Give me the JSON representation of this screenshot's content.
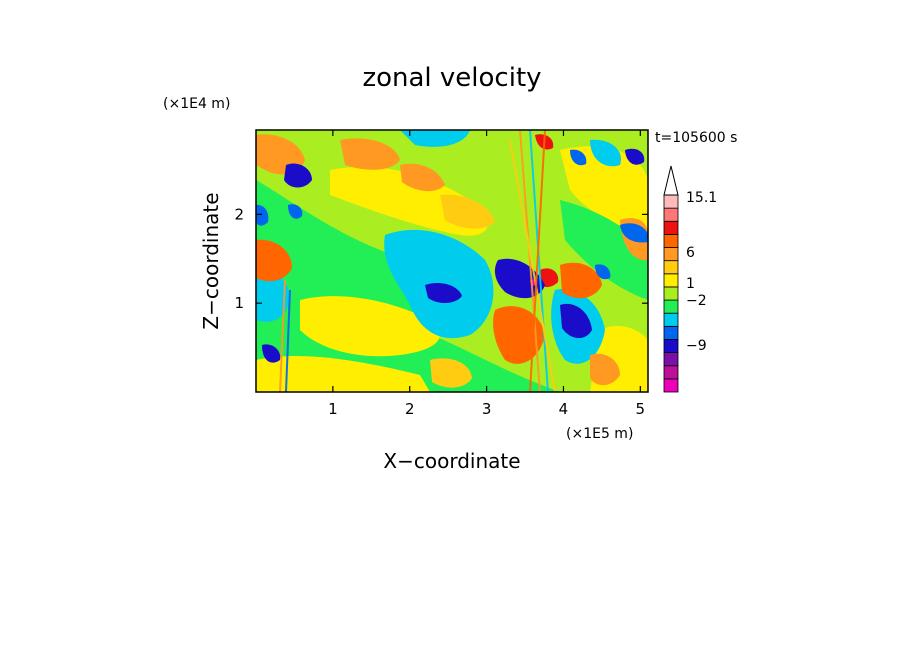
{
  "chart_data": {
    "type": "heatmap",
    "title": "zonal velocity",
    "xlabel": "X−coordinate",
    "ylabel": "Z−coordinate",
    "x_unit": "(×1E5 m)",
    "y_unit": "(×1E4 m)",
    "time_label": "t=105600 s",
    "xlim": [
      0,
      5.1
    ],
    "ylim": [
      0,
      2.95
    ],
    "x_ticks": [
      {
        "value": 1,
        "label": "1"
      },
      {
        "value": 2,
        "label": "2"
      },
      {
        "value": 3,
        "label": "3"
      },
      {
        "value": 4,
        "label": "4"
      },
      {
        "value": 5,
        "label": "5"
      }
    ],
    "y_ticks": [
      {
        "value": 1,
        "label": "1"
      },
      {
        "value": 2,
        "label": "2"
      }
    ],
    "colorbar": {
      "levels": [
        {
          "color": "#ee00bb"
        },
        {
          "color": "#bb1199"
        },
        {
          "color": "#7a10a8"
        },
        {
          "color": "#1a0cc8"
        },
        {
          "color": "#0066ee"
        },
        {
          "color": "#00ccee"
        },
        {
          "color": "#22ee55"
        },
        {
          "color": "#aaee22"
        },
        {
          "color": "#ffee00"
        },
        {
          "color": "#ffcc11"
        },
        {
          "color": "#ff9922"
        },
        {
          "color": "#ff6600"
        },
        {
          "color": "#ee1111"
        },
        {
          "color": "#ff7777"
        },
        {
          "color": "#ffbbbb"
        }
      ],
      "labels": [
        "15.1",
        "6",
        "1",
        "−2",
        "−9"
      ]
    }
  }
}
